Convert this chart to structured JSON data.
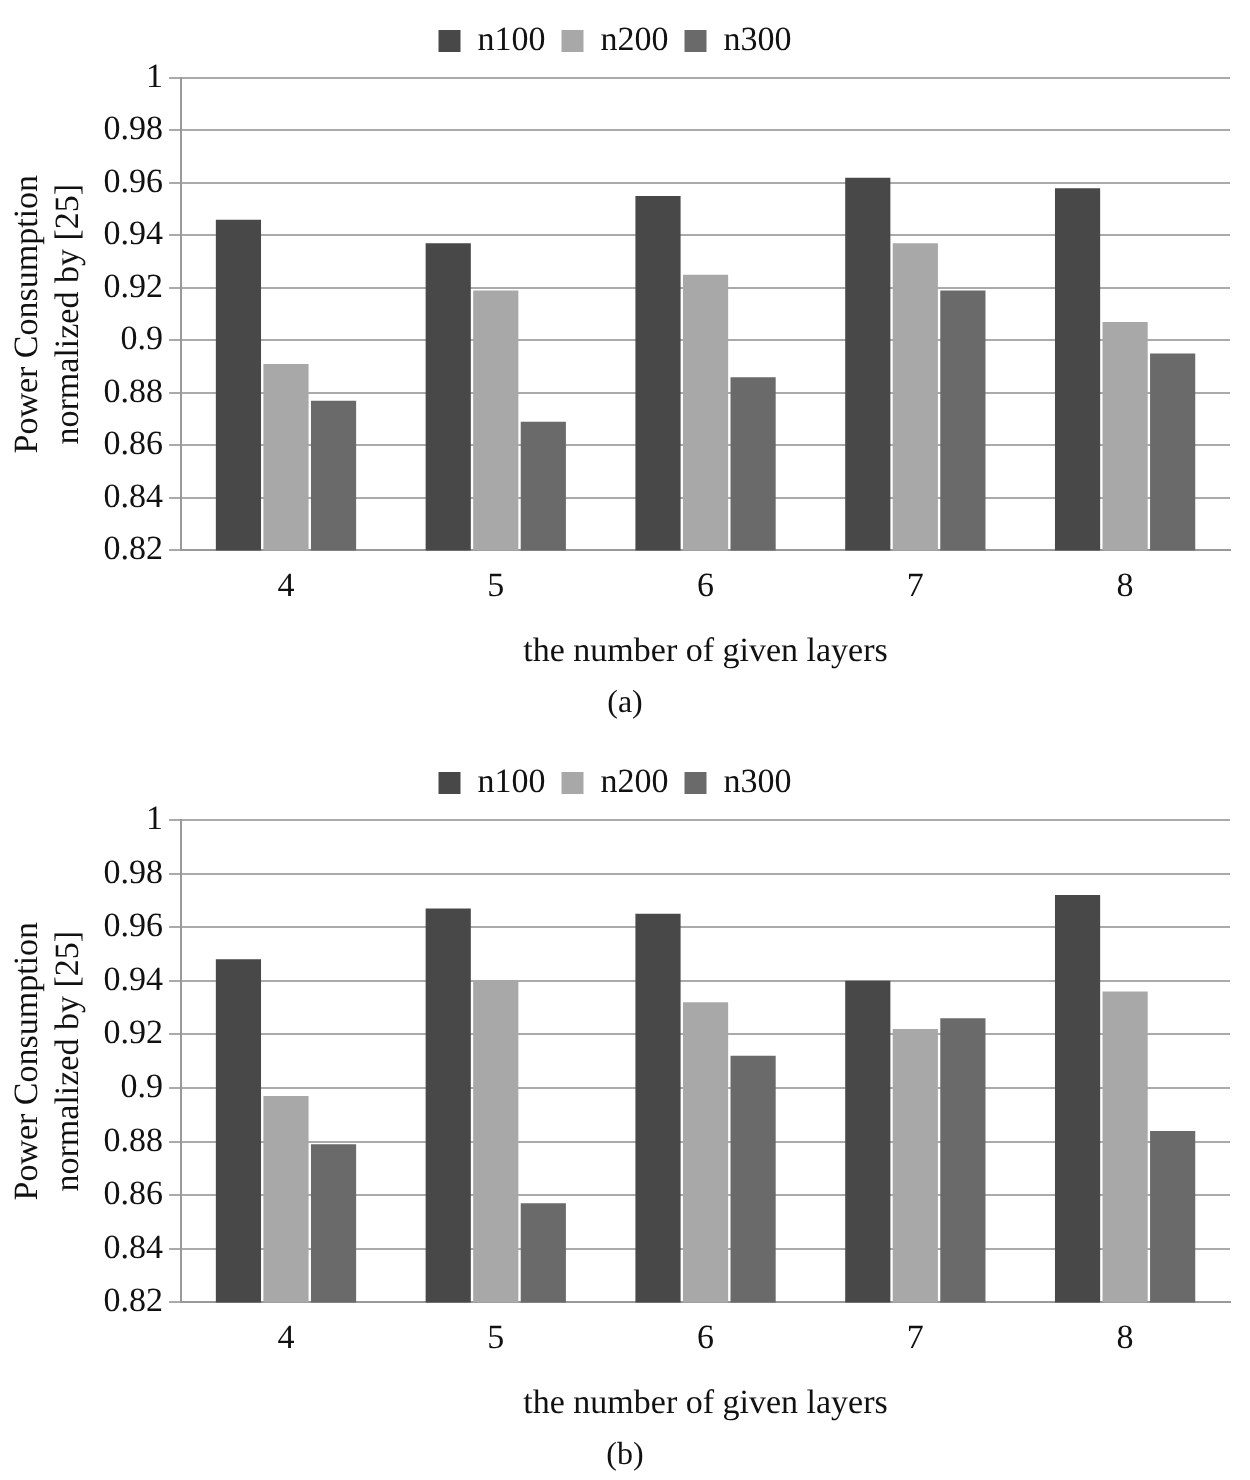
{
  "chart_data": [
    {
      "type": "bar",
      "xlabel": "the number of given layers",
      "ylabel": "Power Consumption\nnormalized by [25]",
      "categories": [
        "4",
        "5",
        "6",
        "7",
        "8"
      ],
      "series": [
        {
          "name": "n100",
          "color": "#484848",
          "values": [
            0.946,
            0.937,
            0.955,
            0.962,
            0.958
          ]
        },
        {
          "name": "n200",
          "color": "#a8a8a8",
          "values": [
            0.891,
            0.919,
            0.925,
            0.937,
            0.907
          ]
        },
        {
          "name": "n300",
          "color": "#6a6a6a",
          "values": [
            0.877,
            0.869,
            0.886,
            0.919,
            0.895
          ]
        }
      ],
      "ylim": [
        0.82,
        1
      ],
      "yticks": [
        0.82,
        0.84,
        0.86,
        0.88,
        0.9,
        0.92,
        0.94,
        0.96,
        0.98,
        1
      ],
      "grid": "y",
      "legend": "top",
      "annotations": [
        "(a)"
      ]
    },
    {
      "type": "bar",
      "xlabel": "the number of given layers",
      "ylabel": "Power Consumption\nnormalized by [25]",
      "categories": [
        "4",
        "5",
        "6",
        "7",
        "8"
      ],
      "series": [
        {
          "name": "n100",
          "color": "#484848",
          "values": [
            0.948,
            0.967,
            0.965,
            0.94,
            0.972
          ]
        },
        {
          "name": "n200",
          "color": "#a8a8a8",
          "values": [
            0.897,
            0.94,
            0.932,
            0.922,
            0.936
          ]
        },
        {
          "name": "n300",
          "color": "#6a6a6a",
          "values": [
            0.879,
            0.857,
            0.912,
            0.926,
            0.884
          ]
        }
      ],
      "ylim": [
        0.82,
        1
      ],
      "yticks": [
        0.82,
        0.84,
        0.86,
        0.88,
        0.9,
        0.92,
        0.94,
        0.96,
        0.98,
        1
      ],
      "grid": "y",
      "legend": "top",
      "annotations": [
        "(b)"
      ]
    }
  ]
}
